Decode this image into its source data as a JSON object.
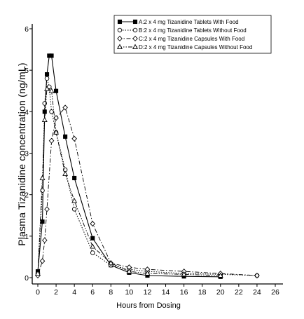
{
  "chart_data": {
    "type": "line",
    "title": "",
    "xlabel": "Hours from Dosing",
    "ylabel": "Plasma Tizanidine concentration (ng/mL)",
    "xlim": [
      0,
      26
    ],
    "ylim": [
      0,
      6
    ],
    "xticks": [
      0,
      2,
      4,
      6,
      8,
      10,
      12,
      14,
      16,
      18,
      20,
      22,
      24,
      26
    ],
    "yticks": [
      0,
      1,
      2,
      3,
      4,
      5,
      6
    ],
    "grid": false,
    "legend_position": "top-right",
    "series": [
      {
        "name": "A:2 x 4 mg Tizanidine Tablets With Food",
        "marker": "filled-square",
        "line": "solid",
        "x": [
          0,
          0.5,
          0.75,
          1,
          1.25,
          1.5,
          2,
          3,
          4,
          6,
          8,
          10,
          12,
          16,
          20
        ],
        "y": [
          0.15,
          1.35,
          4.0,
          4.9,
          5.35,
          5.35,
          4.5,
          3.4,
          2.4,
          0.95,
          0.3,
          0.12,
          0.05,
          0.03,
          0.02
        ]
      },
      {
        "name": "B:2 x 4 mg Tizanidine Tablets Without Food",
        "marker": "open-circle",
        "line": "dotted",
        "x": [
          0,
          0.5,
          0.75,
          1,
          1.25,
          1.5,
          2,
          3,
          4,
          6,
          8,
          10,
          12,
          16,
          20,
          24
        ],
        "y": [
          0.1,
          2.1,
          4.2,
          4.8,
          4.6,
          4.0,
          3.5,
          2.6,
          1.65,
          0.6,
          0.3,
          0.2,
          0.15,
          0.1,
          0.08,
          0.05
        ]
      },
      {
        "name": "C:2 x 4 mg Tizanidine Capsules With Food",
        "marker": "open-diamond",
        "line": "dash-dot",
        "x": [
          0,
          0.5,
          0.75,
          1,
          1.5,
          2,
          3,
          4,
          6,
          8,
          10,
          12,
          16,
          20,
          24
        ],
        "y": [
          0.05,
          0.4,
          0.9,
          1.65,
          3.3,
          3.85,
          4.1,
          3.35,
          1.3,
          0.35,
          0.25,
          0.2,
          0.15,
          0.1,
          0.05
        ]
      },
      {
        "name": "D:2 x 4 mg Tizanidine Capsules Without Food",
        "marker": "open-triangle",
        "line": "dash-dot-dot",
        "x": [
          0,
          0.5,
          0.75,
          1,
          1.5,
          2,
          3,
          4,
          6,
          8,
          10,
          12,
          16,
          20
        ],
        "y": [
          0.1,
          2.4,
          3.8,
          4.55,
          4.5,
          3.5,
          2.5,
          1.85,
          0.75,
          0.35,
          0.15,
          0.1,
          0.08,
          0.05
        ]
      }
    ]
  }
}
